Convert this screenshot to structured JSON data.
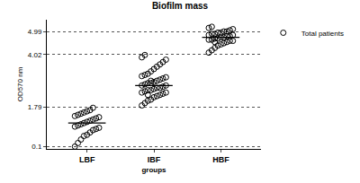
{
  "chart_data": {
    "type": "scatter",
    "title": "Biofilm mass",
    "x_label": "groups",
    "y_label": "OD570 nm",
    "categories": [
      "LBF",
      "IBF",
      "HBF"
    ],
    "series": [
      {
        "name": "Total patients",
        "color": "#000000",
        "marker": "circle-open",
        "values": [
          [
            0.1,
            0.25,
            0.4,
            0.55,
            0.6,
            0.7,
            0.8,
            0.85,
            0.9,
            0.95,
            1.0,
            1.05,
            1.1,
            1.15,
            1.2,
            1.25,
            1.3,
            1.35,
            1.4,
            1.45,
            1.5,
            1.55,
            1.6,
            1.65,
            1.75
          ],
          [
            1.85,
            1.95,
            2.05,
            2.1,
            2.2,
            2.25,
            2.3,
            2.35,
            2.4,
            2.4,
            2.45,
            2.5,
            2.5,
            2.55,
            2.6,
            2.6,
            2.65,
            2.7,
            2.7,
            2.75,
            2.8,
            2.8,
            2.85,
            2.9,
            2.95,
            3.0,
            3.05,
            3.1,
            3.15,
            3.2,
            3.3,
            3.4,
            3.5,
            3.6,
            3.7,
            3.8,
            3.9,
            4.0,
            2.3,
            2.9
          ],
          [
            4.1,
            4.2,
            4.3,
            4.4,
            4.45,
            4.5,
            4.55,
            4.6,
            4.6,
            4.65,
            4.65,
            4.7,
            4.7,
            4.75,
            4.75,
            4.8,
            4.8,
            4.85,
            4.85,
            4.9,
            4.9,
            4.95,
            4.95,
            5.0,
            5.0,
            5.05,
            5.1,
            5.15,
            5.2,
            4.55
          ]
        ],
        "means": [
          1.1,
          2.7,
          4.75
        ]
      }
    ],
    "ylim": [
      0,
      5.5
    ],
    "yticks": [
      0.1,
      1.79,
      4.02,
      4.99
    ],
    "grid": true,
    "legend": "top right"
  }
}
